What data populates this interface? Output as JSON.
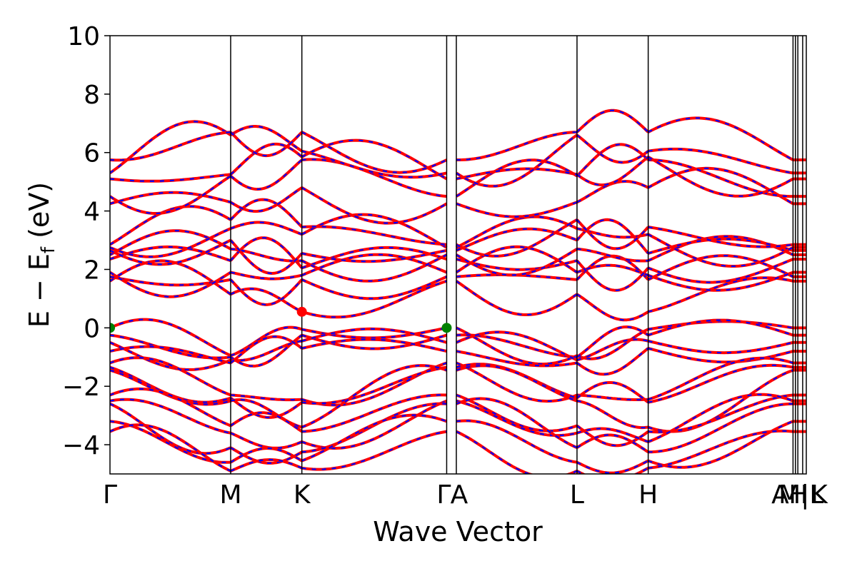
{
  "chart_data": {
    "type": "line",
    "title": "",
    "xlabel": "Wave Vector",
    "ylabel": "E − E_f (eV)",
    "ylabel_parts": {
      "main": "E − E",
      "sub": "f",
      "unit": " (eV)"
    },
    "ylim": [
      -5,
      10
    ],
    "xlim": [
      0,
      5.77
    ],
    "yticks": [
      -4,
      -2,
      0,
      2,
      4,
      6,
      8,
      10
    ],
    "ytick_labels": [
      "−4",
      "−2",
      "0",
      "2",
      "4",
      "6",
      "8",
      "10"
    ],
    "kpath": [
      {
        "label": "Γ",
        "x": 0.0
      },
      {
        "label": "M",
        "x": 1.0
      },
      {
        "label": "K",
        "x": 1.59
      },
      {
        "label": "Γ",
        "x": 2.79
      },
      {
        "label": "A",
        "x": 2.87
      },
      {
        "label": "L",
        "x": 3.87
      },
      {
        "label": "H",
        "x": 4.46
      },
      {
        "label": "A",
        "x": 5.66
      },
      {
        "label": "L",
        "x": 5.68
      },
      {
        "label": "M",
        "x": 5.7
      },
      {
        "label": "H",
        "x": 5.74
      },
      {
        "label": "K",
        "x": 5.77
      }
    ],
    "xtick_display": [
      "Γ",
      "M",
      "K",
      "Γ",
      "A",
      "L",
      "H",
      "A",
      "M|L",
      "H",
      "K"
    ],
    "series": [
      {
        "name": "",
        "color": "#ff0000",
        "style": "solid"
      },
      {
        "name": "",
        "color": "#0000ff",
        "style": "dashed"
      }
    ],
    "conduction_bands": {
      "gamma": [
        1.6,
        1.75,
        1.9,
        2.35,
        2.5,
        2.65,
        2.75,
        2.85,
        4.25,
        4.5,
        5.1,
        5.3,
        5.75
      ],
      "m": [
        1.15,
        1.65,
        1.9,
        2.3,
        2.7,
        3.0,
        3.4,
        3.7,
        4.3,
        5.2,
        5.25,
        6.6,
        6.7
      ],
      "k": [
        0.55,
        1.65,
        1.8,
        2.05,
        2.3,
        2.55,
        3.2,
        3.45,
        4.8,
        5.75,
        5.85,
        6.05,
        6.7
      ]
    },
    "valence_bands": {
      "gamma": [
        0.0,
        -0.25,
        -0.5,
        -0.8,
        -1.2,
        -1.35,
        -1.45,
        -2.3,
        -2.5,
        -2.6,
        -3.2,
        -3.55
      ],
      "m": [
        -0.95,
        -1.0,
        -1.1,
        -1.2,
        -2.3,
        -2.4,
        -2.5,
        -3.35,
        -3.6,
        -4.1,
        -4.6,
        -4.9
      ],
      "k": [
        -0.05,
        -0.25,
        -0.45,
        -0.7,
        -2.45,
        -2.55,
        -3.4,
        -3.55,
        -3.9,
        -4.25,
        -4.55,
        -4.8
      ]
    },
    "band_edges": [
      {
        "type": "vbm",
        "x": 0.0,
        "y": 0.0,
        "color": "#008000"
      },
      {
        "type": "vbm",
        "x": 2.79,
        "y": 0.0,
        "color": "#008000"
      },
      {
        "type": "cbm",
        "x": 1.59,
        "y": 0.55,
        "color": "#ff0000"
      }
    ]
  }
}
